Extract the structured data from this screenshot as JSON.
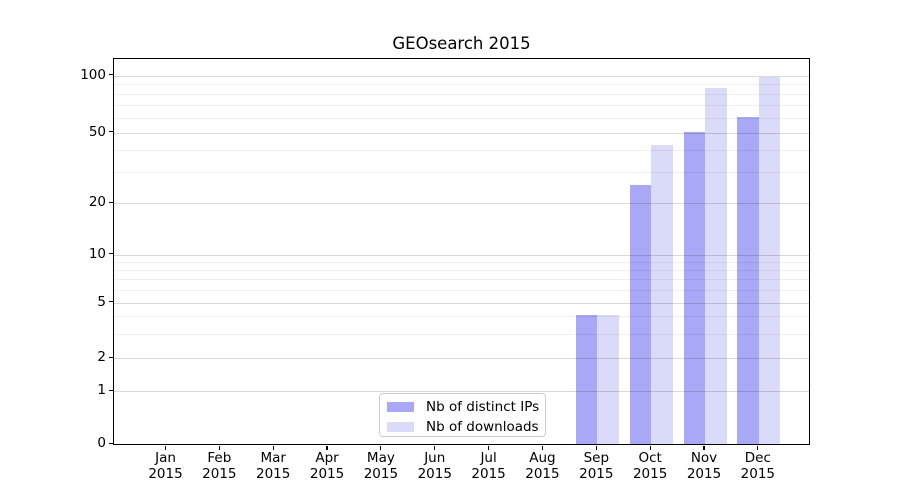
{
  "chart_data": {
    "type": "bar",
    "title": "GEOsearch 2015",
    "categories": [
      "Jan",
      "Feb",
      "Mar",
      "Apr",
      "May",
      "Jun",
      "Jul",
      "Aug",
      "Sep",
      "Oct",
      "Nov",
      "Dec"
    ],
    "x_tick_year": "2015",
    "series": [
      {
        "name": "Nb of distinct IPs",
        "color": "#a8a8f6",
        "values": [
          0,
          0,
          0,
          0,
          0,
          0,
          0,
          0,
          4,
          25,
          50,
          60
        ]
      },
      {
        "name": "Nb of downloads",
        "color": "#dadaf9",
        "values": [
          0,
          0,
          0,
          0,
          0,
          0,
          0,
          0,
          4,
          42,
          85,
          97
        ]
      }
    ],
    "y_axis": {
      "scale": "log-like",
      "major_ticks": [
        0,
        1,
        2,
        5,
        10,
        20,
        50,
        100
      ],
      "minor_gridlines": [
        3,
        4,
        6,
        7,
        8,
        9,
        30,
        40,
        60,
        70,
        80,
        90
      ],
      "range": [
        0,
        110
      ]
    },
    "grid": "horizontal major and minor, drawn faintly over bars",
    "legend": {
      "position": "bottom-center-inside"
    }
  },
  "colors": {
    "bar_distinct_ips": "#a8a8f6",
    "bar_downloads": "#dadaf9",
    "grid_major": "#d9d9d9",
    "grid_minor": "#eeeeee",
    "axis": "#000000",
    "text": "#000000",
    "legend_border": "#cccccc"
  }
}
